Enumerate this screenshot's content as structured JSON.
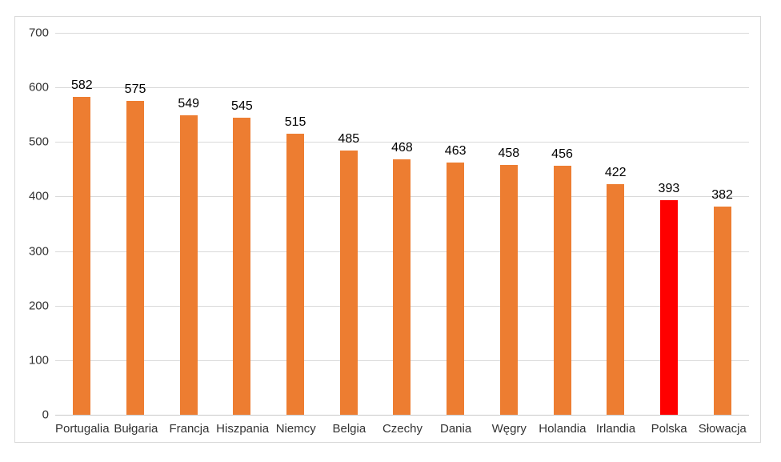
{
  "chart_data": {
    "type": "bar",
    "title": "",
    "xlabel": "",
    "ylabel": "",
    "categories": [
      "Portugalia",
      "Bułgaria",
      "Francja",
      "Hiszpania",
      "Niemcy",
      "Belgia",
      "Czechy",
      "Dania",
      "Węgry",
      "Holandia",
      "Irlandia",
      "Polska",
      "Słowacja"
    ],
    "values": [
      582,
      575,
      549,
      545,
      515,
      485,
      468,
      463,
      458,
      456,
      422,
      393,
      382
    ],
    "data_labels": [
      "582",
      "575",
      "549",
      "545",
      "515",
      "485",
      "468",
      "463",
      "458",
      "456",
      "422",
      "393",
      "382"
    ],
    "highlight_index": 11,
    "highlight_category": "Polska",
    "ylim": [
      0,
      700
    ],
    "ytick_step": 100,
    "yticks": [
      0,
      100,
      200,
      300,
      400,
      500,
      600,
      700
    ],
    "grid": "horizontal",
    "legend": "none",
    "colors": {
      "bar": "#ED7D31",
      "highlight": "#FF0000",
      "gridline": "#D9D9D9",
      "axis_line": "#C9C9C9",
      "frame_border": "#D9D9D9",
      "value_label_text": "#000000",
      "axis_label_text": "#333333",
      "background": "#FFFFFF"
    }
  }
}
